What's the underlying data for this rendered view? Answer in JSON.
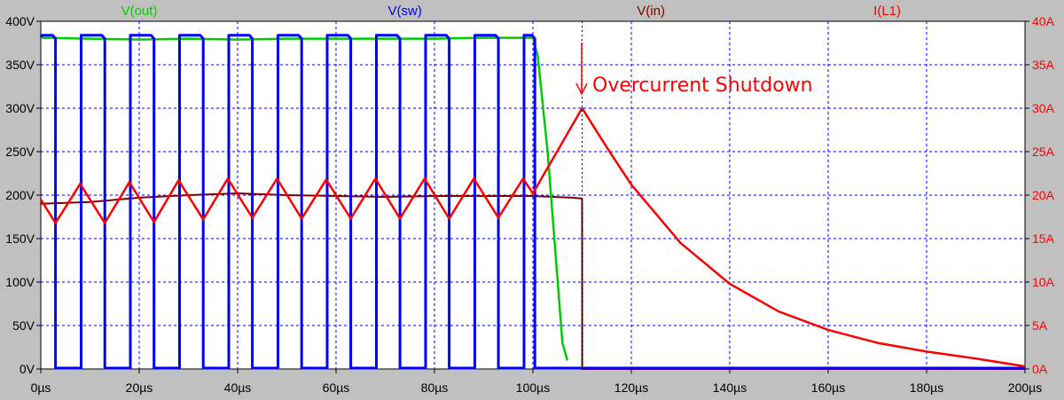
{
  "chart_data": {
    "type": "line",
    "title": "",
    "x_tick_labels": [
      "0µs",
      "20µs",
      "40µs",
      "60µs",
      "80µs",
      "100µs",
      "120µs",
      "140µs",
      "160µs",
      "180µs",
      "200µs"
    ],
    "xlim": [
      0,
      200
    ],
    "left_axis": {
      "unit": "V",
      "ylim": [
        0,
        400
      ],
      "tick_labels": [
        "0V",
        "50V",
        "100V",
        "150V",
        "200V",
        "250V",
        "300V",
        "350V",
        "400V"
      ]
    },
    "right_axis": {
      "unit": "A",
      "ylim": [
        0,
        40
      ],
      "tick_labels": [
        "0A",
        "5A",
        "10A",
        "15A",
        "20A",
        "25A",
        "30A",
        "35A",
        "40A"
      ]
    },
    "grid": true,
    "colors": {
      "background": "#c0c0c0",
      "plot_background": "#ffffff",
      "grid": "#0000ff",
      "vout": "#00cc00",
      "vsw": "#0000ff",
      "vin": "#800000",
      "il1": "#ff0000",
      "annotation": "#ff0000"
    },
    "series": [
      {
        "name": "V(out)",
        "axis": "left",
        "color": "#00cc00",
        "x": [
          0,
          10,
          20,
          30,
          40,
          50,
          60,
          70,
          80,
          90,
          100,
          101,
          103,
          106,
          107
        ],
        "values": [
          381,
          380,
          379,
          380,
          379,
          380,
          380,
          380,
          380,
          381,
          381,
          360,
          250,
          30,
          10
        ]
      },
      {
        "name": "V(sw)",
        "axis": "left",
        "color": "#0000ff",
        "period_us": 10,
        "high_start_us": [
          0.3,
          8.2,
          18.2,
          28.2,
          38.2,
          48.2,
          58.2,
          68.2,
          78.2,
          88.2,
          98.2
        ],
        "high_end_us": [
          3.0,
          13.0,
          23.0,
          33.0,
          43.0,
          53.0,
          63.0,
          73.0,
          83.0,
          93.0,
          100.4
        ],
        "high_value": 384,
        "low_value": 1,
        "end_us": 200
      },
      {
        "name": "V(in)",
        "axis": "left",
        "color": "#800000",
        "x": [
          0,
          10,
          20,
          30,
          40,
          50,
          60,
          70,
          80,
          90,
          100,
          108,
          110,
          110.01,
          200
        ],
        "values": [
          190,
          192,
          197,
          200,
          202,
          200,
          199,
          198,
          199,
          199,
          199,
          197,
          196,
          0,
          0
        ]
      },
      {
        "name": "I(L1)",
        "axis": "right",
        "color": "#ff0000",
        "x": [
          0,
          3,
          8,
          13,
          18,
          23,
          28,
          33,
          38,
          43,
          48,
          53,
          58,
          63,
          68,
          73,
          78,
          83,
          88,
          93,
          98,
          100,
          110,
          115,
          120,
          130,
          140,
          150,
          160,
          170,
          180,
          190,
          200
        ],
        "values": [
          19.5,
          16.8,
          21.3,
          16.8,
          21.5,
          16.9,
          21.7,
          17.2,
          21.9,
          17.4,
          21.9,
          17.3,
          21.8,
          17.3,
          21.9,
          17.3,
          21.9,
          17.3,
          21.9,
          17.4,
          21.9,
          20.2,
          30.0,
          25.5,
          21.2,
          14.5,
          9.8,
          6.6,
          4.5,
          3.0,
          2.0,
          1.2,
          0.3
        ]
      }
    ],
    "annotations": [
      {
        "text": "Overcurrent Shutdown",
        "x": 110,
        "y_right": 30,
        "color": "#ff0000"
      }
    ]
  }
}
